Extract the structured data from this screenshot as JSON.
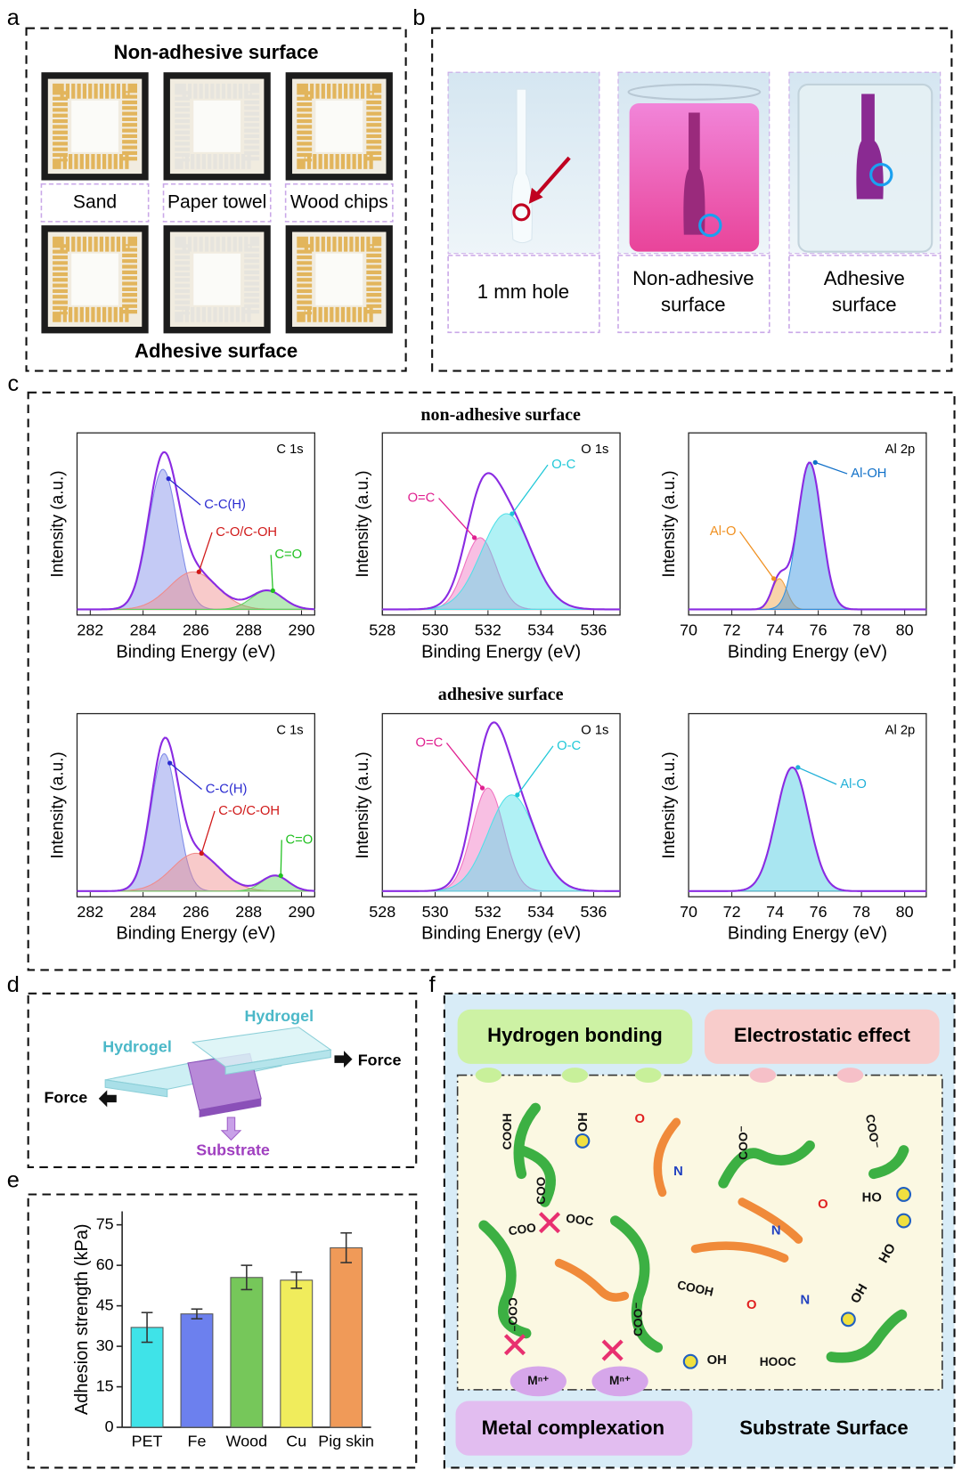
{
  "figure": {
    "a": {
      "label": "a",
      "top_title": "Non-adhesive surface",
      "bottom_title": "Adhesive surface",
      "substrates": [
        "Sand",
        "Paper towel",
        "Wood chips"
      ]
    },
    "b": {
      "label": "b",
      "captions": [
        [
          "1 mm hole"
        ],
        [
          "Non-adhesive",
          "surface"
        ],
        [
          "Adhesive",
          "surface"
        ]
      ]
    },
    "c": {
      "label": "c",
      "groups": [
        {
          "title": "non-adhesive surface",
          "plots": [
            {
              "type": "line",
              "core_level": "C 1s",
              "xlabel": "Binding Energy (eV)",
              "ylabel": "Intensity (a.u.)",
              "xlim": [
                281.5,
                290.5
              ],
              "xticks": [
                282,
                284,
                286,
                288,
                290
              ],
              "envelope_color": "#8a2be2",
              "peaks": [
                {
                  "label": "C-C(H)",
                  "center": 284.75,
                  "height": 0.82,
                  "width": 0.55,
                  "color": "#7d8ae8",
                  "label_color": "#2a2ad0"
                },
                {
                  "label": "C-O/C-OH",
                  "center": 285.9,
                  "height": 0.22,
                  "width": 0.9,
                  "color": "#f08a8a",
                  "label_color": "#d01818"
                },
                {
                  "label": "C=O",
                  "center": 288.7,
                  "height": 0.11,
                  "width": 0.6,
                  "color": "#60d060",
                  "label_color": "#20c020"
                }
              ]
            },
            {
              "type": "line",
              "core_level": "O 1s",
              "xlabel": "Binding Energy (eV)",
              "ylabel": "Intensity (a.u.)",
              "xlim": [
                528,
                537
              ],
              "xticks": [
                528,
                530,
                532,
                534,
                536
              ],
              "envelope_color": "#8a2be2",
              "peaks": [
                {
                  "label": "O=C",
                  "center": 531.7,
                  "height": 0.42,
                  "width": 0.6,
                  "color": "#f070c0",
                  "label_color": "#e02090"
                },
                {
                  "label": "O-C",
                  "center": 532.7,
                  "height": 0.56,
                  "width": 0.95,
                  "color": "#50e0e8",
                  "label_color": "#20c8d8"
                }
              ]
            },
            {
              "type": "line",
              "core_level": "Al 2p",
              "xlabel": "Binding Energy (eV)",
              "ylabel": "Intensity (a.u.)",
              "xlim": [
                70,
                81
              ],
              "xticks": [
                70,
                72,
                74,
                76,
                78,
                80
              ],
              "envelope_color": "#8a2be2",
              "peaks": [
                {
                  "label": "Al-O",
                  "center": 74.2,
                  "height": 0.18,
                  "width": 0.35,
                  "color": "#f0a040",
                  "label_color": "#f09020"
                },
                {
                  "label": "Al-OH",
                  "center": 75.6,
                  "height": 0.86,
                  "width": 0.55,
                  "color": "#3090e0",
                  "label_color": "#1070c8"
                }
              ]
            }
          ]
        },
        {
          "title": "adhesive surface",
          "plots": [
            {
              "type": "line",
              "core_level": "C 1s",
              "xlabel": "Binding Energy (eV)",
              "ylabel": "Intensity (a.u.)",
              "xlim": [
                281.5,
                290.5
              ],
              "xticks": [
                282,
                284,
                286,
                288,
                290
              ],
              "envelope_color": "#8a2be2",
              "peaks": [
                {
                  "label": "C-C(H)",
                  "center": 284.8,
                  "height": 0.8,
                  "width": 0.5,
                  "color": "#7d8ae8",
                  "label_color": "#2a2ad0"
                },
                {
                  "label": "C-O/C-OH",
                  "center": 286.0,
                  "height": 0.22,
                  "width": 0.9,
                  "color": "#f08a8a",
                  "label_color": "#d01818"
                },
                {
                  "label": "C=O",
                  "center": 289.0,
                  "height": 0.09,
                  "width": 0.5,
                  "color": "#60d060",
                  "label_color": "#20c020"
                }
              ]
            },
            {
              "type": "line",
              "core_level": "O 1s",
              "xlabel": "Binding Energy (eV)",
              "ylabel": "Intensity (a.u.)",
              "xlim": [
                528,
                537
              ],
              "xticks": [
                528,
                530,
                532,
                534,
                536
              ],
              "envelope_color": "#8a2be2",
              "peaks": [
                {
                  "label": "O=C",
                  "center": 532.0,
                  "height": 0.6,
                  "width": 0.6,
                  "color": "#f070c0",
                  "label_color": "#e02090"
                },
                {
                  "label": "O-C",
                  "center": 532.9,
                  "height": 0.56,
                  "width": 0.9,
                  "color": "#50e0e8",
                  "label_color": "#20c8d8"
                }
              ]
            },
            {
              "type": "line",
              "core_level": "Al 2p",
              "xlabel": "Binding Energy (eV)",
              "ylabel": "Intensity (a.u.)",
              "xlim": [
                70,
                81
              ],
              "xticks": [
                70,
                72,
                74,
                76,
                78,
                80
              ],
              "envelope_color": "#8a2be2",
              "peaks": [
                {
                  "label": "Al-O",
                  "center": 74.8,
                  "height": 0.72,
                  "width": 0.75,
                  "color": "#40c8e0",
                  "label_color": "#20b0d8"
                }
              ]
            }
          ]
        }
      ]
    },
    "d": {
      "label": "d",
      "hydrogel_top": "Hydrogel",
      "hydrogel_bottom": "Hydrogel",
      "force_right": "Force",
      "force_left": "Force",
      "substrate": "Substrate"
    },
    "f": {
      "label": "f",
      "hydrogen_bonding": "Hydrogen bonding",
      "electrostatic_effect": "Electrostatic effect",
      "metal_complexation": "Metal complexation",
      "substrate_surface": "Substrate Surface",
      "chem_labels": [
        "COOH",
        "OH",
        "O",
        "N",
        "COO⁻",
        "COO⁻",
        "O",
        "HO",
        "N",
        "COO",
        "COO",
        "OOC",
        "COO⁻",
        "COO⁻",
        "COOH",
        "O",
        "N",
        "HO",
        "OH",
        "Mⁿ⁺",
        "Mⁿ⁺",
        "OH",
        "HOOC"
      ]
    }
  },
  "chart_data": {
    "type": "bar",
    "panel_label": "e",
    "ylabel": "Adhesion strength (kPa)",
    "categories": [
      "PET",
      "Fe",
      "Wood",
      "Cu",
      "Pig skin"
    ],
    "values": [
      37,
      42,
      55.5,
      54.5,
      66.5
    ],
    "errors": [
      5.5,
      1.8,
      4.5,
      3,
      5.5
    ],
    "colors": [
      "#3fe3e8",
      "#6c80ee",
      "#76c75a",
      "#f0ec5c",
      "#f09a58"
    ],
    "ylim": [
      0,
      80
    ],
    "yticks": [
      0,
      15,
      30,
      45,
      60,
      75
    ]
  }
}
